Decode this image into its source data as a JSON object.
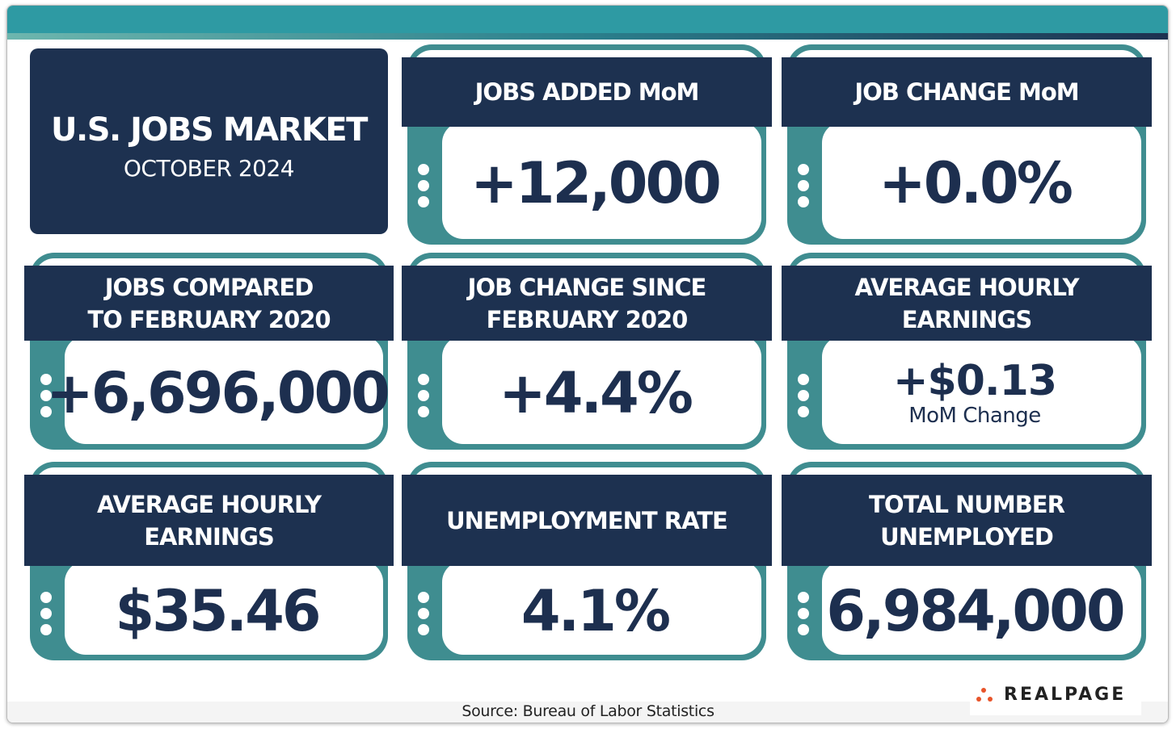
{
  "header": {
    "title": "U.S. JOBS MARKET",
    "subtitle": "OCTOBER 2024"
  },
  "cards": [
    {
      "title_lines": [
        "JOBS ADDED MoM"
      ],
      "value": "+12,000"
    },
    {
      "title_lines": [
        "JOB CHANGE MoM"
      ],
      "value": "+0.0%"
    },
    {
      "title_lines": [
        "JOBS COMPARED",
        "TO FEBRUARY 2020"
      ],
      "value": "+6,696,000"
    },
    {
      "title_lines": [
        "JOB CHANGE SINCE",
        "FEBRUARY 2020"
      ],
      "value": "+4.4%"
    },
    {
      "title_lines": [
        "AVERAGE HOURLY",
        "EARNINGS"
      ],
      "value": "+$0.13",
      "note": "MoM Change"
    },
    {
      "title_lines": [
        "AVERAGE HOURLY",
        "EARNINGS"
      ],
      "value": "$35.46"
    },
    {
      "title_lines": [
        "UNEMPLOYMENT RATE"
      ],
      "value": "4.1%"
    },
    {
      "title_lines": [
        "TOTAL NUMBER",
        "UNEMPLOYED"
      ],
      "value": "6,984,000"
    }
  ],
  "source": "Source: Bureau of Labor Statistics",
  "logo": "REALPAGE"
}
